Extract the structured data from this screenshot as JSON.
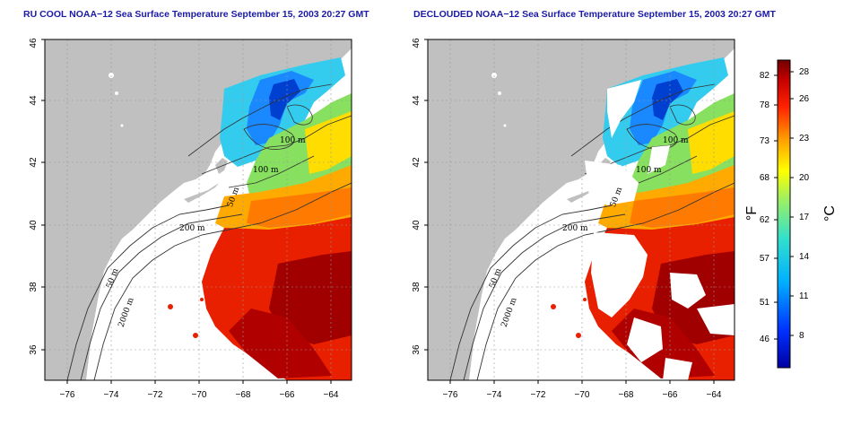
{
  "left_panel": {
    "title": "RU COOL NOAA−12 Sea Surface Temperature September 15, 2003 20:27 GMT"
  },
  "right_panel": {
    "title": "DECLOUDED NOAA−12 Sea Surface Temperature September 15, 2003 20:27 GMT"
  },
  "axes": {
    "lon_labels": [
      "−76",
      "−74",
      "−72",
      "−70",
      "−68",
      "−66",
      "−64"
    ],
    "lat_labels": [
      "36",
      "38",
      "40",
      "42",
      "44",
      "46"
    ]
  },
  "contours": {
    "left": [
      {
        "text": "100 m"
      },
      {
        "text": "100 m"
      },
      {
        "text": "50 m"
      },
      {
        "text": "200 m"
      },
      {
        "text": "50 m"
      },
      {
        "text": "2000 m"
      }
    ],
    "right": [
      {
        "text": "100 m"
      },
      {
        "text": "100 m"
      },
      {
        "text": "50 m"
      },
      {
        "text": "200 m"
      },
      {
        "text": "50 m"
      },
      {
        "text": "2000 m"
      }
    ]
  },
  "colorbar": {
    "unit_f": "°F",
    "unit_c": "°C",
    "f_labels": [
      "82",
      "78",
      "73",
      "68",
      "62",
      "57",
      "51",
      "46"
    ],
    "c_labels": [
      "28",
      "26",
      "23",
      "20",
      "17",
      "14",
      "11",
      "8"
    ]
  },
  "colors": {
    "land": "#c0c0c0",
    "ocean_nodata": "#ffffff",
    "frame": "#000000",
    "title": "#1a1aa6",
    "sst_cold": "#0a0aa0",
    "sst_cool": "#0080ff",
    "sst_mid": "#33ddcc",
    "sst_warm": "#ffcc00",
    "sst_hot": "#e00000",
    "sst_max": "#7a0000"
  }
}
